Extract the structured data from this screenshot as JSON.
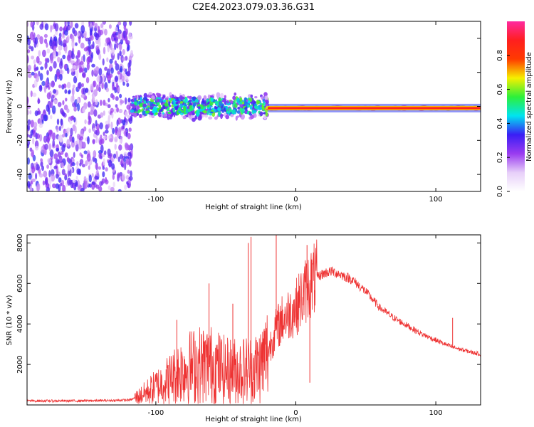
{
  "title": "C2E4.2023.079.03.36.G31",
  "chart_data": [
    {
      "type": "heatmap",
      "xlabel": "Height of straight line (km)",
      "ylabel": "Frequency (Hz)",
      "xlim": [
        -192,
        132
      ],
      "ylim": [
        -50,
        50
      ],
      "xticks": [
        -100,
        0,
        100
      ],
      "yticks": [
        -40,
        -20,
        0,
        20,
        40
      ],
      "colorbar": {
        "label": "Normalized spectral amplitude",
        "range": [
          0,
          1
        ],
        "ticks": [
          0.0,
          0.2,
          0.4,
          0.6,
          0.8
        ],
        "tick_labels": [
          "0.0",
          "0.2",
          "0.4",
          "0.6",
          "0.8"
        ],
        "colormap": [
          "#ffffff",
          "#e7cff9",
          "#9a3bf0",
          "#3a1ef5",
          "#00e4f0",
          "#2df03a",
          "#f6f000",
          "#ff3b00",
          "#ff1f1f",
          "#ff2aa0"
        ]
      },
      "regions": [
        {
          "x": [
            -192,
            -117
          ],
          "freq_range": [
            -50,
            50
          ],
          "amplitude": [
            0.1,
            0.35
          ],
          "pattern": "broadband noise"
        },
        {
          "x": [
            -117,
            -20
          ],
          "freq_range": [
            -8,
            8
          ],
          "amplitude": [
            0.2,
            0.6
          ],
          "pattern": "scattered band centered at -1 Hz"
        },
        {
          "x": [
            -20,
            132
          ],
          "freq_range": [
            -3,
            1
          ],
          "amplitude": [
            0.6,
            1.0
          ],
          "pattern": "narrow stable carrier at -1 Hz"
        }
      ]
    },
    {
      "type": "line",
      "xlabel": "Height of straight line (km)",
      "ylabel": "SNR (10 * v/v)",
      "xlim": [
        -192,
        132
      ],
      "ylim": [
        0,
        8400
      ],
      "xticks": [
        -100,
        0,
        100
      ],
      "yticks": [
        2000,
        4000,
        6000,
        8000
      ],
      "color": "#ee3333",
      "points": [
        {
          "x": -192,
          "y": 200
        },
        {
          "x": -160,
          "y": 200
        },
        {
          "x": -130,
          "y": 220
        },
        {
          "x": -118,
          "y": 250
        },
        {
          "x": -110,
          "y": 500
        },
        {
          "x": -100,
          "y": 900
        },
        {
          "x": -90,
          "y": 1300
        },
        {
          "x": -80,
          "y": 1800
        },
        {
          "x": -70,
          "y": 2000
        },
        {
          "x": -60,
          "y": 2000
        },
        {
          "x": -50,
          "y": 1700
        },
        {
          "x": -40,
          "y": 1700
        },
        {
          "x": -30,
          "y": 1800
        },
        {
          "x": -25,
          "y": 2000
        },
        {
          "x": -20,
          "y": 2600
        },
        {
          "x": -15,
          "y": 3600
        },
        {
          "x": -10,
          "y": 4200
        },
        {
          "x": -5,
          "y": 4500
        },
        {
          "x": 0,
          "y": 4800
        },
        {
          "x": 5,
          "y": 5400
        },
        {
          "x": 10,
          "y": 6000
        },
        {
          "x": 15,
          "y": 6300
        },
        {
          "x": 20,
          "y": 6500
        },
        {
          "x": 25,
          "y": 6600
        },
        {
          "x": 30,
          "y": 6500
        },
        {
          "x": 40,
          "y": 6200
        },
        {
          "x": 50,
          "y": 5600
        },
        {
          "x": 60,
          "y": 4800
        },
        {
          "x": 70,
          "y": 4300
        },
        {
          "x": 80,
          "y": 3900
        },
        {
          "x": 90,
          "y": 3500
        },
        {
          "x": 100,
          "y": 3200
        },
        {
          "x": 110,
          "y": 2900
        },
        {
          "x": 120,
          "y": 2700
        },
        {
          "x": 132,
          "y": 2500
        }
      ],
      "spikes": [
        {
          "x": -34,
          "y": 8000
        },
        {
          "x": -32,
          "y": 8300
        },
        {
          "x": -14,
          "y": 8400
        },
        {
          "x": 8,
          "y": 7900
        },
        {
          "x": 10,
          "y": 1100
        },
        {
          "x": -62,
          "y": 6000
        },
        {
          "x": -85,
          "y": 4200
        },
        {
          "x": -45,
          "y": 5000
        },
        {
          "x": 112,
          "y": 4300
        }
      ]
    }
  ]
}
